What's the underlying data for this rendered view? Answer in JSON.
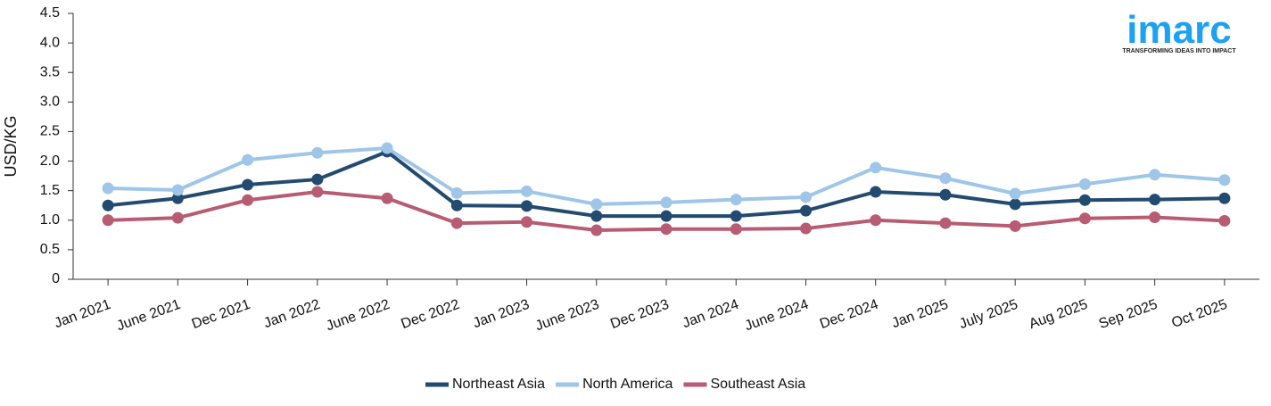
{
  "chart_data": {
    "type": "line",
    "y_label": "USD/KG",
    "logo": {
      "name": "imarc",
      "tagline": "TRANSFORMING IDEAS INTO IMPACT"
    },
    "categories": [
      "Jan 2021",
      "June 2021",
      "Dec 2021",
      "Jan 2022",
      "June 2022",
      "Dec 2022",
      "Jan 2023",
      "June 2023",
      "Dec 2023",
      "Jan 2024",
      "June 2024",
      "Dec 2024",
      "Jan 2025",
      "July 2025",
      "Aug 2025",
      "Sep 2025",
      "Oct 2025"
    ],
    "series": [
      {
        "name": "Northeast Asia",
        "color": "#234b70",
        "values": [
          1.25,
          1.37,
          1.6,
          1.69,
          2.16,
          1.25,
          1.24,
          1.07,
          1.07,
          1.07,
          1.16,
          1.48,
          1.43,
          1.27,
          1.34,
          1.35,
          1.37
        ]
      },
      {
        "name": "North America",
        "color": "#9fc5e8",
        "values": [
          1.54,
          1.51,
          2.02,
          2.14,
          2.22,
          1.46,
          1.49,
          1.27,
          1.3,
          1.35,
          1.39,
          1.89,
          1.71,
          1.45,
          1.61,
          1.77,
          1.68
        ]
      },
      {
        "name": "Southeast Asia",
        "color": "#b85c73",
        "values": [
          1.0,
          1.04,
          1.34,
          1.48,
          1.37,
          0.95,
          0.97,
          0.83,
          0.85,
          0.85,
          0.86,
          1.0,
          0.95,
          0.9,
          1.03,
          1.05,
          0.99
        ]
      }
    ],
    "ylim": [
      0,
      4.5
    ],
    "yticks": [
      0,
      0.5,
      {
        "value": 1,
        "label": "1.0"
      },
      1.5,
      {
        "value": 2,
        "label": "2.0"
      },
      2.5,
      {
        "value": 3,
        "label": "3.0"
      },
      3.5,
      {
        "value": 4,
        "label": "4.0"
      },
      4.5
    ],
    "grid": false,
    "legend": "bottom"
  }
}
